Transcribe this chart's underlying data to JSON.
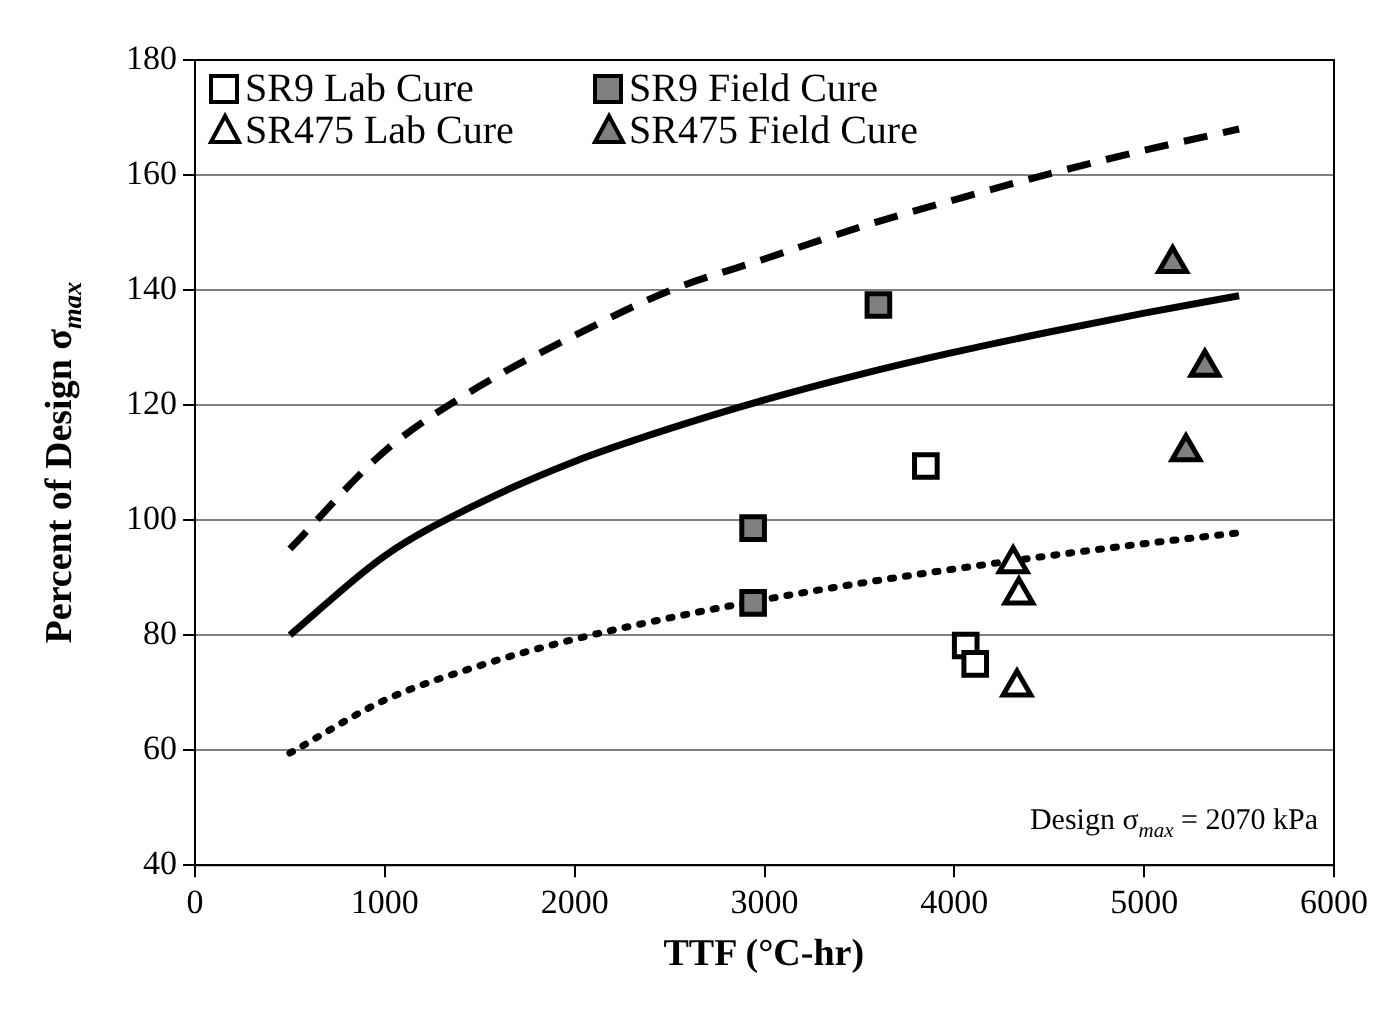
{
  "chart_data": {
    "type": "scatter",
    "xlabel": "TTF (°C-hr)",
    "ylabel": "Percent of Design σ$_{max}$",
    "xlim": [
      0,
      6000
    ],
    "xticks": [
      0,
      1000,
      2000,
      3000,
      4000,
      5000,
      6000
    ],
    "ylim": [
      40,
      180
    ],
    "yticks": [
      40,
      60,
      80,
      100,
      120,
      140,
      160,
      180
    ],
    "grid": "y",
    "legend": "top left",
    "annotations": [
      "Design σ$_{max}$ = 2070 kPa"
    ],
    "series": [
      {
        "name": "SR9 Lab Cure",
        "marker": "square",
        "color": "#ffffff",
        "x": [
          3850,
          4060,
          4110
        ],
        "values": [
          109.4,
          78.2,
          75
        ]
      },
      {
        "name": "SR9 Field Cure",
        "marker": "square",
        "color": "#808080",
        "x": [
          2940,
          2940,
          3600
        ],
        "values": [
          98.6,
          85.6,
          137.4
        ]
      },
      {
        "name": "SR475 Lab Cure",
        "marker": "triangle",
        "color": "#ffffff",
        "x": [
          4310,
          4340,
          4330
        ],
        "values": [
          92.4,
          87,
          71
        ]
      },
      {
        "name": "SR475 Field Cure",
        "marker": "triangle",
        "color": "#808080",
        "x": [
          5150,
          5320,
          5220
        ],
        "values": [
          144.6,
          126.6,
          111.9
        ]
      },
      {
        "type": "line",
        "marker": "none",
        "line_style": "dashed",
        "color": "#000000",
        "x": [
          500,
          1000,
          1500,
          2000,
          2500,
          3000,
          3500,
          4000,
          4500,
          5000,
          5500
        ],
        "values": [
          95,
          112,
          123.3,
          132.1,
          139.9,
          145.4,
          150.9,
          155.7,
          160.2,
          164.3,
          168
        ]
      },
      {
        "type": "line",
        "marker": "none",
        "line_style": "solid",
        "color": "#000000",
        "x": [
          500,
          1000,
          1500,
          2000,
          2500,
          3000,
          3500,
          4000,
          4500,
          5000,
          5500
        ],
        "values": [
          80,
          93.8,
          103,
          110.2,
          115.9,
          120.9,
          125.3,
          129.2,
          132.7,
          136,
          139
        ]
      },
      {
        "type": "line",
        "marker": "none",
        "line_style": "dotted",
        "color": "#000000",
        "x": [
          500,
          1000,
          1500,
          2000,
          2500,
          3000,
          3500,
          4000,
          4500,
          5000,
          5500
        ],
        "values": [
          59.5,
          68.7,
          74.7,
          79.3,
          83,
          86.2,
          89,
          91.5,
          93.8,
          95.9,
          97.8
        ]
      }
    ]
  }
}
